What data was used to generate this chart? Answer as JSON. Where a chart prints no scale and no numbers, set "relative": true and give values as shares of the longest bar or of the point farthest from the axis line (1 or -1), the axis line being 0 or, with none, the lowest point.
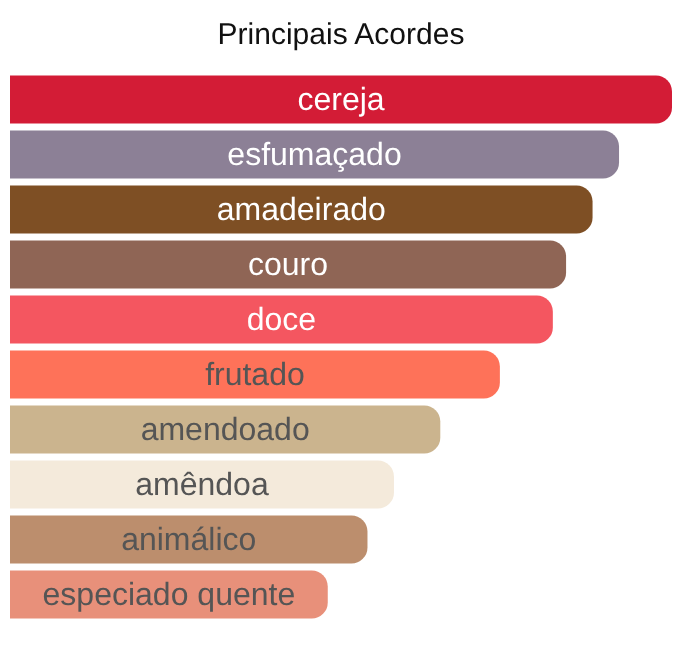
{
  "chart_data": {
    "type": "bar",
    "orientation": "horizontal",
    "relative": true,
    "title": "Principais Acordes",
    "categories": [
      "cereja",
      "esfumaçado",
      "amadeirado",
      "couro",
      "doce",
      "frutado",
      "amendoado",
      "amêndoa",
      "animálico",
      "especiado quente"
    ],
    "values": [
      1,
      0.92,
      0.88,
      0.84,
      0.82,
      0.74,
      0.65,
      0.58,
      0.54,
      0.48
    ],
    "colors": [
      "#d31c36",
      "#8c8096",
      "#7e4f24",
      "#8f6555",
      "#f45660",
      "#fe7259",
      "#cbb48e",
      "#f4eadb",
      "#bc8e6d",
      "#e8907a"
    ],
    "legend": false
  }
}
